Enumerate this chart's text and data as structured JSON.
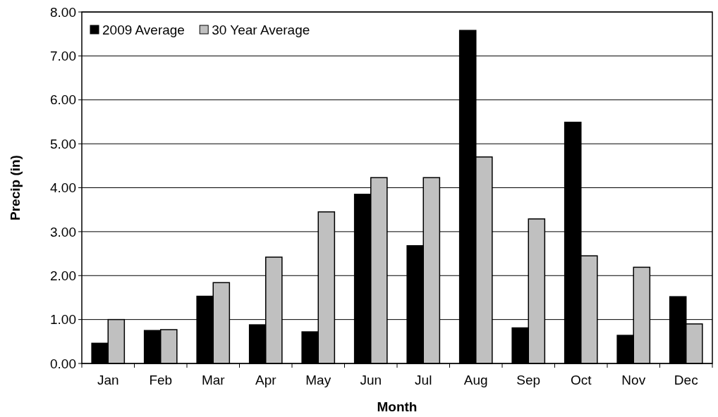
{
  "chart_data": {
    "type": "bar",
    "xlabel": "Month",
    "ylabel": "Precip (in)",
    "categories": [
      "Jan",
      "Feb",
      "Mar",
      "Apr",
      "May",
      "Jun",
      "Jul",
      "Aug",
      "Sep",
      "Oct",
      "Nov",
      "Dec"
    ],
    "series": [
      {
        "name": "2009 Average",
        "color": "#000000",
        "values": [
          0.46,
          0.75,
          1.53,
          0.88,
          0.72,
          3.85,
          2.68,
          7.58,
          0.81,
          5.49,
          0.64,
          1.52
        ]
      },
      {
        "name": "30 Year Average",
        "color": "#c0c0c0",
        "values": [
          1.0,
          0.77,
          1.84,
          2.42,
          3.45,
          4.23,
          4.23,
          4.7,
          3.29,
          2.45,
          2.19,
          0.9
        ]
      }
    ],
    "ylim": [
      0,
      8
    ],
    "yticks": [
      {
        "value": 0,
        "label": "0.00"
      },
      {
        "value": 1,
        "label": "1.00"
      },
      {
        "value": 2,
        "label": "2.00"
      },
      {
        "value": 3,
        "label": "3.00"
      },
      {
        "value": 4,
        "label": "4.00"
      },
      {
        "value": 5,
        "label": "5.00"
      },
      {
        "value": 6,
        "label": "6.00"
      },
      {
        "value": 7,
        "label": "7.00"
      },
      {
        "value": 8,
        "label": "8.00"
      }
    ],
    "grid": "y",
    "legend": "top left"
  }
}
